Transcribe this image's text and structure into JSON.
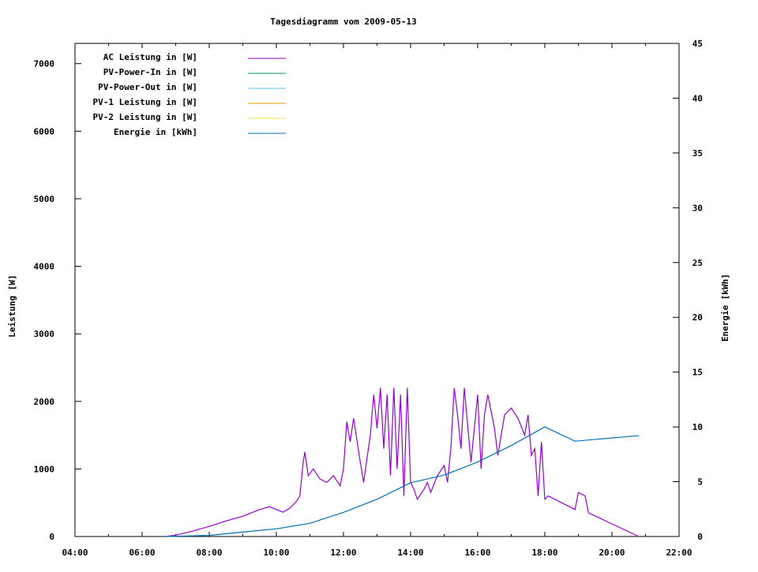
{
  "chart_data": {
    "type": "line",
    "title": "Tagesdiagramm vom 2009-05-13",
    "xlabel": "",
    "ylabel": "Leistung [W]",
    "y2label": "Energie [kWh]",
    "xlim": [
      4,
      22
    ],
    "ylim": [
      0,
      7300
    ],
    "y2lim": [
      0,
      45
    ],
    "xticks": [
      {
        "v": 4,
        "l": "04:00"
      },
      {
        "v": 6,
        "l": "06:00"
      },
      {
        "v": 8,
        "l": "08:00"
      },
      {
        "v": 10,
        "l": "10:00"
      },
      {
        "v": 12,
        "l": "12:00"
      },
      {
        "v": 14,
        "l": "14:00"
      },
      {
        "v": 16,
        "l": "16:00"
      },
      {
        "v": 18,
        "l": "18:00"
      },
      {
        "v": 20,
        "l": "20:00"
      },
      {
        "v": 22,
        "l": "22:00"
      }
    ],
    "yticks": [
      0,
      1000,
      2000,
      3000,
      4000,
      5000,
      6000,
      7000
    ],
    "y2ticks": [
      0,
      5,
      10,
      15,
      20,
      25,
      30,
      35,
      40,
      45
    ],
    "legend_position": "top-left",
    "series": [
      {
        "name": "AC Leistung in [W]",
        "color": "#9400d3",
        "axis": "y",
        "x": [
          6.7,
          7.0,
          7.5,
          8.0,
          8.5,
          9.0,
          9.5,
          9.8,
          10.0,
          10.2,
          10.4,
          10.6,
          10.7,
          10.8,
          10.85,
          10.95,
          11.1,
          11.3,
          11.5,
          11.7,
          11.9,
          12.0,
          12.1,
          12.2,
          12.3,
          12.5,
          12.6,
          12.8,
          12.9,
          13.0,
          13.1,
          13.2,
          13.3,
          13.4,
          13.5,
          13.6,
          13.7,
          13.8,
          13.9,
          14.0,
          14.1,
          14.2,
          14.4,
          14.5,
          14.6,
          14.8,
          15.0,
          15.1,
          15.2,
          15.3,
          15.4,
          15.5,
          15.6,
          15.8,
          16.0,
          16.1,
          16.2,
          16.3,
          16.5,
          16.6,
          16.8,
          17.0,
          17.2,
          17.4,
          17.5,
          17.6,
          17.7,
          17.8,
          17.9,
          18.0,
          18.1,
          18.5,
          18.9,
          19.0,
          19.2,
          19.3,
          20.8
        ],
        "y": [
          0,
          20,
          80,
          150,
          230,
          300,
          400,
          440,
          400,
          360,
          420,
          520,
          600,
          1100,
          1250,
          900,
          1000,
          850,
          800,
          900,
          750,
          1000,
          1700,
          1400,
          1750,
          1100,
          800,
          1500,
          2100,
          1600,
          2200,
          1300,
          2100,
          900,
          2200,
          1000,
          2100,
          600,
          2200,
          800,
          700,
          550,
          700,
          800,
          650,
          900,
          1050,
          800,
          1300,
          2200,
          1800,
          1300,
          2200,
          1100,
          2100,
          1000,
          1800,
          2100,
          1600,
          1200,
          1800,
          1900,
          1750,
          1500,
          1800,
          1200,
          1300,
          600,
          1400,
          550,
          600,
          500,
          400,
          650,
          600,
          350,
          0
        ]
      },
      {
        "name": "PV-Power-In in [W]",
        "color": "#009e73",
        "axis": "y",
        "x": [],
        "y": []
      },
      {
        "name": "PV-Power-Out in [W]",
        "color": "#56b4e9",
        "axis": "y",
        "x": [],
        "y": []
      },
      {
        "name": "PV-1 Leistung in [W]",
        "color": "#e69f00",
        "axis": "y",
        "x": [],
        "y": []
      },
      {
        "name": "PV-2 Leistung in [W]",
        "color": "#f0e442",
        "axis": "y",
        "x": [],
        "y": []
      },
      {
        "name": "Energie in [kWh]",
        "color": "#0072b2",
        "axis": "y2",
        "x": [
          6.7,
          8,
          9,
          10,
          11,
          12,
          13,
          14,
          15,
          16,
          17,
          18,
          18.9,
          20.8
        ],
        "y": [
          0,
          0.1,
          0.4,
          0.7,
          1.2,
          2.2,
          3.4,
          4.9,
          5.6,
          6.8,
          8.3,
          10.0,
          8.7,
          9.2
        ]
      }
    ]
  }
}
